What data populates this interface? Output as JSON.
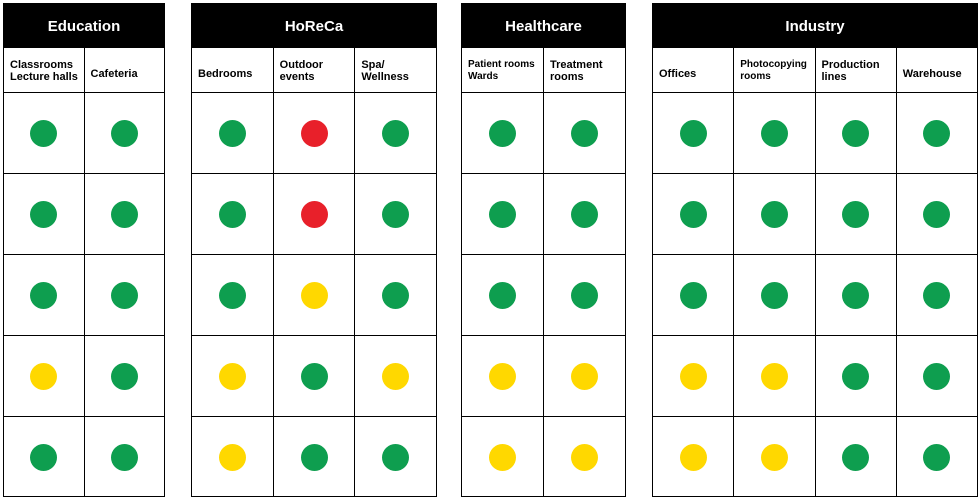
{
  "chart_data": {
    "type": "table",
    "legend_colors": {
      "green": "#0e9e4f",
      "yellow": "#ffd800",
      "red": "#e8202a"
    },
    "groups": [
      {
        "title": "Education",
        "columns": [
          "Classrooms\nLecture halls",
          "Cafeteria"
        ],
        "rows": [
          [
            "green",
            "green"
          ],
          [
            "green",
            "green"
          ],
          [
            "green",
            "green"
          ],
          [
            "yellow",
            "green"
          ],
          [
            "green",
            "green"
          ]
        ]
      },
      {
        "title": "HoReCa",
        "columns": [
          "Bedrooms",
          "Outdoor\nevents",
          "Spa/\nWellness"
        ],
        "rows": [
          [
            "green",
            "red",
            "green"
          ],
          [
            "green",
            "red",
            "green"
          ],
          [
            "green",
            "yellow",
            "green"
          ],
          [
            "yellow",
            "green",
            "yellow"
          ],
          [
            "yellow",
            "green",
            "green"
          ]
        ]
      },
      {
        "title": "Healthcare",
        "columns": [
          "Patient rooms\nWards",
          "Treatment\nrooms"
        ],
        "rows": [
          [
            "green",
            "green"
          ],
          [
            "green",
            "green"
          ],
          [
            "green",
            "green"
          ],
          [
            "yellow",
            "yellow"
          ],
          [
            "yellow",
            "yellow"
          ]
        ]
      },
      {
        "title": "Industry",
        "columns": [
          "Offices",
          "Photocopying\nrooms",
          "Production\nlines",
          "Warehouse"
        ],
        "rows": [
          [
            "green",
            "green",
            "green",
            "green"
          ],
          [
            "green",
            "green",
            "green",
            "green"
          ],
          [
            "green",
            "green",
            "green",
            "green"
          ],
          [
            "yellow",
            "yellow",
            "green",
            "green"
          ],
          [
            "yellow",
            "yellow",
            "green",
            "green"
          ]
        ]
      }
    ]
  }
}
